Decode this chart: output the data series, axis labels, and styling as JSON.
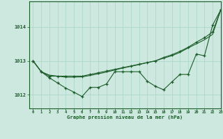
{
  "background_color": "#cde8df",
  "grid_color": "#a8d5c8",
  "line_color": "#1a5c28",
  "xlabel": "Graphe pression niveau de la mer (hPa)",
  "xlim": [
    -0.5,
    23
  ],
  "ylim": [
    1011.6,
    1014.75
  ],
  "yticks": [
    1012,
    1013,
    1014
  ],
  "xticks": [
    0,
    1,
    2,
    3,
    4,
    5,
    6,
    7,
    8,
    9,
    10,
    11,
    12,
    13,
    14,
    15,
    16,
    17,
    18,
    19,
    20,
    21,
    22,
    23
  ],
  "series_smooth": [
    1013.0,
    1012.68,
    1012.58,
    1012.55,
    1012.52,
    1012.52,
    1012.53,
    1012.57,
    1012.62,
    1012.67,
    1012.73,
    1012.79,
    1012.84,
    1012.89,
    1012.95,
    1013.0,
    1013.08,
    1013.15,
    1013.25,
    1013.38,
    1013.5,
    1013.62,
    1013.78,
    1014.5
  ],
  "series_noisy": [
    1013.0,
    1012.68,
    1012.5,
    1012.35,
    1012.2,
    1012.08,
    1011.95,
    1012.22,
    1012.22,
    1012.32,
    1012.68,
    1012.68,
    1012.68,
    1012.68,
    1012.4,
    1012.25,
    1012.15,
    1012.38,
    1012.6,
    1012.6,
    1013.2,
    1013.15,
    1014.05,
    1014.5
  ],
  "series_rising": [
    1013.0,
    1012.68,
    1012.55,
    1012.55,
    1012.55,
    1012.55,
    1012.55,
    1012.6,
    1012.65,
    1012.7,
    1012.75,
    1012.8,
    1012.85,
    1012.9,
    1012.95,
    1013.0,
    1013.1,
    1013.18,
    1013.28,
    1013.4,
    1013.55,
    1013.68,
    1013.85,
    1014.5
  ]
}
